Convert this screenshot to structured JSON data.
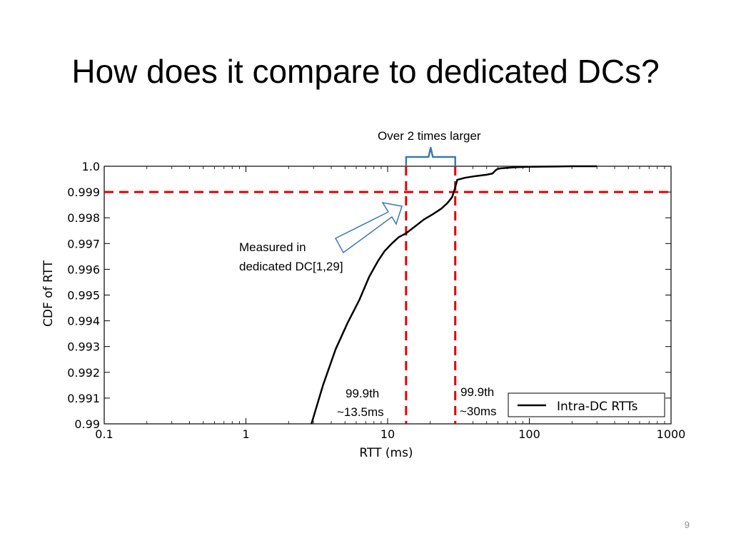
{
  "slide": {
    "title": "How does it compare to dedicated DCs?",
    "page_number": "9"
  },
  "chart_data": {
    "type": "line",
    "xscale": "log",
    "xlim": [
      0.1,
      1000
    ],
    "ylim": [
      0.99,
      1.0
    ],
    "xlabel": "RTT (ms)",
    "ylabel": "CDF of RTT",
    "x_ticks": [
      0.1,
      1,
      10,
      100,
      1000
    ],
    "x_tick_labels": [
      "0.1",
      "1",
      "10",
      "100",
      "1000"
    ],
    "y_ticks": [
      0.99,
      0.991,
      0.992,
      0.993,
      0.994,
      0.995,
      0.996,
      0.997,
      0.998,
      0.999,
      1.0
    ],
    "y_tick_labels": [
      "0.99",
      "0.991",
      "0.992",
      "0.993",
      "0.994",
      "0.995",
      "0.996",
      "0.997",
      "0.998",
      "0.999",
      "1.0"
    ],
    "legend_position": "bottom-right",
    "grid": false,
    "series": [
      {
        "name": "Intra-DC RTTs",
        "color": "#000000",
        "x": [
          2.9,
          3.5,
          4.3,
          5.2,
          6.3,
          7.4,
          8.5,
          9.5,
          10.7,
          12.0,
          13.5,
          15.5,
          18.0,
          21.0,
          24.0,
          26.5,
          28.5,
          29.5,
          31.0,
          35.0,
          42.0,
          50.0,
          55.0,
          58.0,
          60.0,
          63.0,
          70.0,
          80.0,
          100.0,
          150.0,
          200.0,
          300.0
        ],
        "y": [
          0.99,
          0.9915,
          0.9929,
          0.9939,
          0.9948,
          0.9957,
          0.9963,
          0.9967,
          0.997,
          0.99725,
          0.9974,
          0.99765,
          0.99793,
          0.99815,
          0.99836,
          0.99858,
          0.9988,
          0.99905,
          0.99947,
          0.99955,
          0.99962,
          0.99967,
          0.99972,
          0.99985,
          0.9999,
          0.99992,
          0.99994,
          0.99996,
          0.99998,
          0.99999,
          1.0,
          1.0
        ]
      }
    ],
    "reference_lines": [
      {
        "orientation": "horizontal",
        "value": 0.999,
        "color": "#e00000",
        "style": "dashed"
      },
      {
        "orientation": "vertical",
        "value": 13.5,
        "color": "#e00000",
        "style": "dashed"
      },
      {
        "orientation": "vertical",
        "value": 30,
        "color": "#e00000",
        "style": "dashed"
      }
    ],
    "annotations": {
      "bracket_label": "Over 2 times larger",
      "bracket_color": "#3a78b5",
      "arrow_label_line1": "Measured in",
      "arrow_label_line2": "dedicated DC[1,29]",
      "arrow_stroke_color": "#3a78b5",
      "left_line_label_line1": "99.9th",
      "left_line_label_line2": "~13.5ms",
      "right_line_label_line1": "99.9th",
      "right_line_label_line2": "~30ms"
    }
  }
}
